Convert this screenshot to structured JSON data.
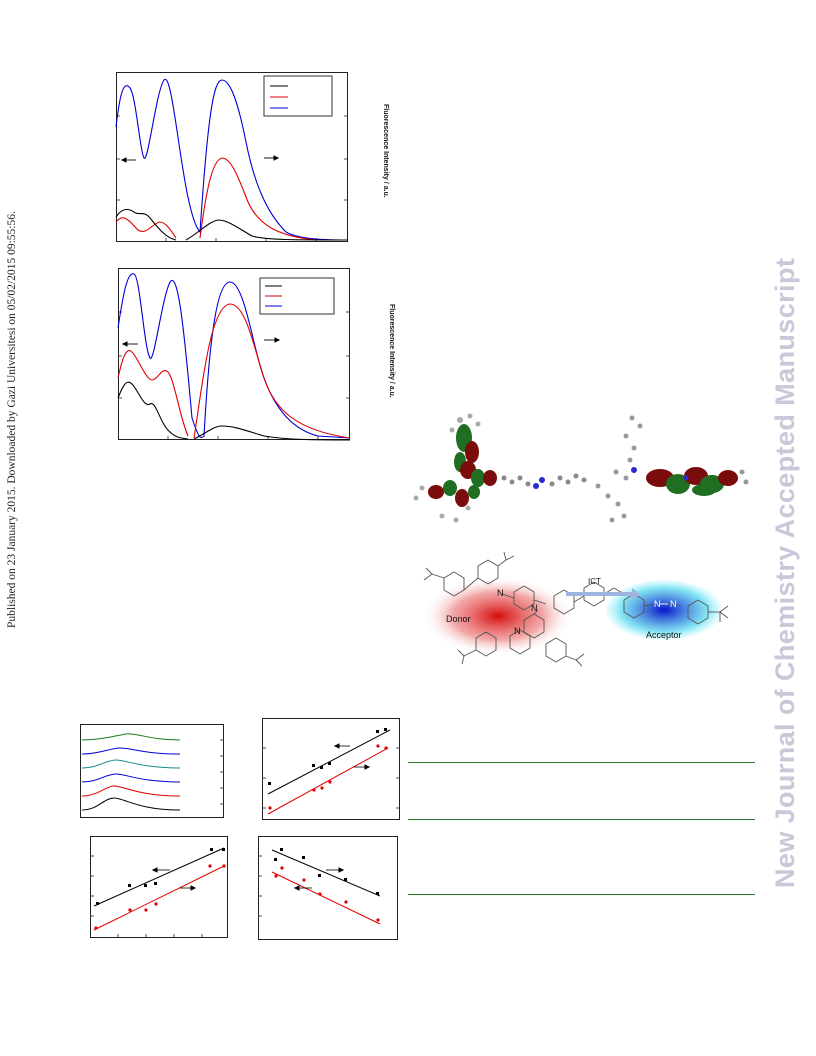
{
  "side_note": "Published on 23 January 2015. Downloaded by Gazi Universitesi on 05/02/2015 09:55:56.",
  "watermark": "New Journal of Chemistry Accepted Manuscript",
  "colors": {
    "black": "#000000",
    "red": "#e00000",
    "blue": "#0000d8",
    "green": "#1a7a1a",
    "teal": "#138a8a",
    "watermark": "#c7c9d9",
    "rule": "#2a7a2a"
  },
  "figure_a": {
    "right_axis_label": "Fluorescence Intensity / a.u."
  },
  "figure_b": {
    "right_axis_label": "Fluorescence Intensity / a.u."
  },
  "scheme": {
    "donor_label": "Donor",
    "acceptor_label": "Acceptor",
    "transfer_label": "ICT",
    "atom_labels": [
      "N",
      "N",
      "N",
      "N",
      "N"
    ]
  },
  "orbital_image": {
    "icon": "molecular-orbital-image"
  }
}
